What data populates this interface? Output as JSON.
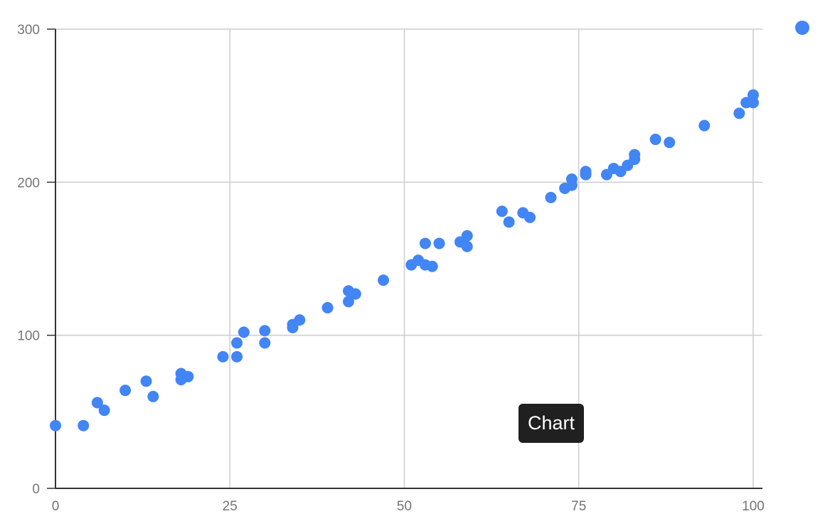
{
  "chart_data": {
    "type": "scatter",
    "title": "",
    "xlabel": "",
    "ylabel": "",
    "xlim": [
      0,
      100
    ],
    "ylim": [
      0,
      300
    ],
    "x_ticks": [
      0,
      25,
      50,
      75,
      100
    ],
    "y_ticks": [
      0,
      100,
      200,
      300
    ],
    "grid": true,
    "color": "#4285f4",
    "series": [
      {
        "points": [
          [
            0,
            41
          ],
          [
            4,
            41
          ],
          [
            6,
            56
          ],
          [
            7,
            51
          ],
          [
            10,
            64
          ],
          [
            13,
            70
          ],
          [
            14,
            60
          ],
          [
            18,
            75
          ],
          [
            18,
            71
          ],
          [
            19,
            73
          ],
          [
            24,
            86
          ],
          [
            26,
            95
          ],
          [
            26,
            86
          ],
          [
            27,
            102
          ],
          [
            30,
            103
          ],
          [
            30,
            95
          ],
          [
            34,
            107
          ],
          [
            34,
            105
          ],
          [
            35,
            110
          ],
          [
            39,
            118
          ],
          [
            42,
            129
          ],
          [
            42,
            122
          ],
          [
            43,
            127
          ],
          [
            47,
            136
          ],
          [
            51,
            146
          ],
          [
            52,
            149
          ],
          [
            53,
            146
          ],
          [
            53,
            160
          ],
          [
            54,
            145
          ],
          [
            55,
            160
          ],
          [
            58,
            161
          ],
          [
            59,
            165
          ],
          [
            59,
            158
          ],
          [
            64,
            181
          ],
          [
            65,
            174
          ],
          [
            67,
            180
          ],
          [
            68,
            177
          ],
          [
            71,
            190
          ],
          [
            73,
            196
          ],
          [
            74,
            198
          ],
          [
            74,
            202
          ],
          [
            76,
            205
          ],
          [
            76,
            207
          ],
          [
            79,
            205
          ],
          [
            80,
            209
          ],
          [
            81,
            207
          ],
          [
            82,
            211
          ],
          [
            83,
            215
          ],
          [
            83,
            218
          ],
          [
            86,
            228
          ],
          [
            88,
            226
          ],
          [
            93,
            237
          ],
          [
            98,
            245
          ],
          [
            99,
            252
          ],
          [
            100,
            257
          ],
          [
            100,
            252
          ]
        ]
      }
    ]
  },
  "tooltip": {
    "label": "Chart"
  }
}
